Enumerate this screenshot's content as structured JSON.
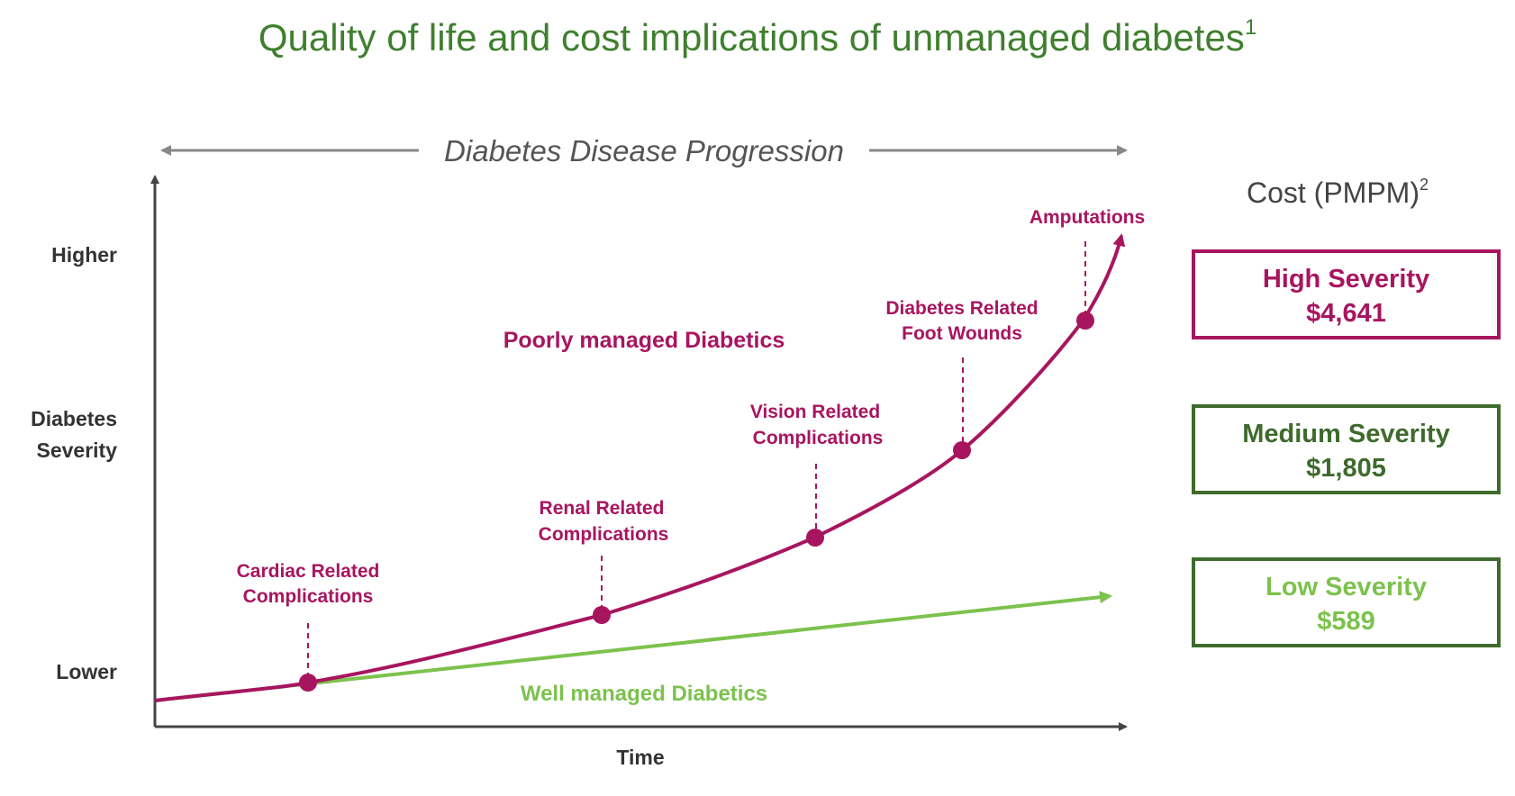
{
  "title": "Quality of life and cost implications of unmanaged diabetes",
  "title_sup": "1",
  "progression_label": "Diabetes Disease Progression",
  "y_axis": {
    "higher": "Higher",
    "middle_line1": "Diabetes",
    "middle_line2": "Severity",
    "lower": "Lower"
  },
  "x_axis_label": "Time",
  "curves": {
    "poor": {
      "label": "Poorly managed Diabetics",
      "color": "#a8155f"
    },
    "well": {
      "label": "Well managed Diabetics",
      "color": "#7cc24e"
    }
  },
  "milestones": [
    {
      "line1": "Cardiac Related",
      "line2": "Complications"
    },
    {
      "line1": "Renal Related",
      "line2": "Complications"
    },
    {
      "line1": "Vision Related",
      "line2": "Complications"
    },
    {
      "line1": "Diabetes Related",
      "line2": "Foot Wounds"
    },
    {
      "line1": "Amputations",
      "line2": ""
    }
  ],
  "cost": {
    "heading": "Cost (PMPM)",
    "heading_sup": "2",
    "tiers": [
      {
        "label": "High Severity",
        "value": "$4,641",
        "color": "#a8155f"
      },
      {
        "label": "Medium Severity",
        "value": "$1,805",
        "color": "#3e6b2c"
      },
      {
        "label": "Low Severity",
        "value": "$589",
        "color": "#7cc24e"
      }
    ]
  },
  "colors": {
    "title": "#3f7f2e",
    "axis": "#444444",
    "progression_arrow": "#888888"
  }
}
